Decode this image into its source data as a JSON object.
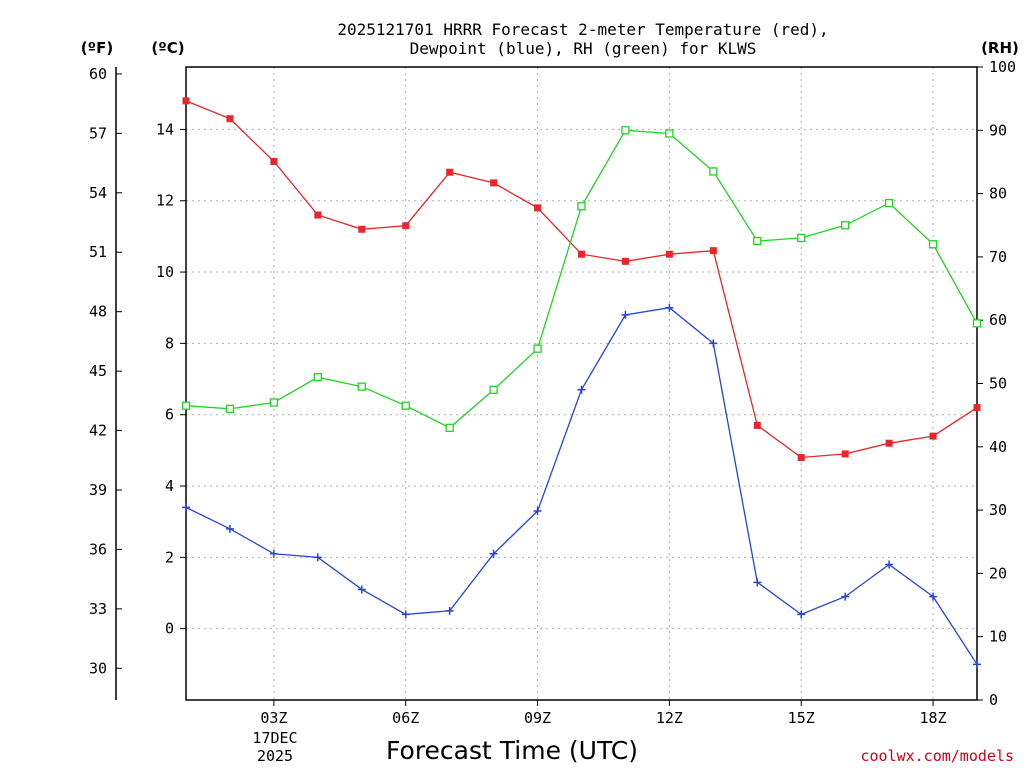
{
  "chart_data": {
    "type": "line",
    "title_line1": "2025121701 HRRR Forecast 2-meter Temperature (red),",
    "title_line2": "Dewpoint (blue), RH (green) for KLWS",
    "xlabel": "Forecast Time (UTC)",
    "credit": "coolwx.com/models",
    "date_label": {
      "day": "17DEC",
      "year": "2025"
    },
    "units": {
      "fahrenheit": "(ºF)",
      "celsius": "(ºC)",
      "rh": "(RH)"
    },
    "x": [
      1,
      2,
      3,
      4,
      5,
      6,
      7,
      8,
      9,
      10,
      11,
      12,
      13,
      14,
      15,
      16,
      17,
      18,
      19
    ],
    "xlim": [
      1,
      19
    ],
    "x_ticks": [
      {
        "value": 3,
        "label": "03Z"
      },
      {
        "value": 6,
        "label": "06Z"
      },
      {
        "value": 9,
        "label": "09Z"
      },
      {
        "value": 12,
        "label": "12Z"
      },
      {
        "value": 15,
        "label": "15Z"
      },
      {
        "value": 18,
        "label": "18Z"
      }
    ],
    "celsius_axis": {
      "ylim": [
        -2,
        15.75
      ],
      "ticks": [
        0,
        2,
        4,
        6,
        8,
        10,
        12,
        14
      ]
    },
    "fahrenheit_axis": {
      "ticks": [
        30,
        33,
        36,
        39,
        42,
        45,
        48,
        51,
        54,
        57,
        60
      ]
    },
    "rh_axis": {
      "ylim": [
        0,
        100
      ],
      "ticks": [
        0,
        10,
        20,
        30,
        40,
        50,
        60,
        70,
        80,
        90,
        100
      ]
    },
    "series": [
      {
        "name": "Temperature",
        "axis": "celsius",
        "color": "#e8262c",
        "marker": "filled-square",
        "values": [
          14.8,
          14.3,
          13.1,
          11.6,
          11.2,
          11.3,
          12.8,
          12.5,
          11.8,
          10.5,
          10.3,
          10.5,
          10.6,
          5.7,
          4.8,
          4.9,
          5.2,
          5.4,
          6.2
        ]
      },
      {
        "name": "Dewpoint",
        "axis": "celsius",
        "color": "#2a44d6",
        "marker": "plus",
        "values": [
          3.4,
          2.8,
          2.1,
          2.0,
          1.1,
          0.4,
          0.5,
          2.1,
          3.3,
          6.7,
          8.8,
          9.0,
          8.0,
          1.3,
          0.4,
          0.9,
          1.8,
          0.9,
          -1.0
        ]
      },
      {
        "name": "RH",
        "axis": "rh",
        "color": "#22d422",
        "marker": "open-square",
        "values": [
          46.5,
          46,
          47,
          51,
          49.5,
          46.5,
          43,
          49,
          55.5,
          78,
          90,
          89.5,
          83.5,
          72.5,
          73,
          75,
          78.5,
          72,
          59.5
        ]
      }
    ]
  }
}
